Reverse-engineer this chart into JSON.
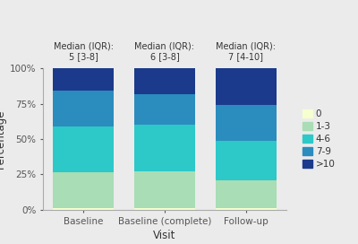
{
  "categories": [
    "Baseline",
    "Baseline (complete)",
    "Follow-up"
  ],
  "annotations": [
    "Median (IQR):\n5 [3-8]",
    "Median (IQR):\n6 [3-8]",
    "Median (IQR):\n7 [4-10]"
  ],
  "segments": {
    "0": [
      1.5,
      1.5,
      1.0
    ],
    "1-3": [
      25.0,
      25.5,
      20.0
    ],
    "4-6": [
      32.5,
      33.0,
      28.0
    ],
    "7-9": [
      25.0,
      22.0,
      25.0
    ],
    ">10": [
      16.0,
      18.0,
      26.0
    ]
  },
  "colors": {
    "0": "#f5ffd0",
    "1-3": "#a8ddb5",
    "4-6": "#2dc8c8",
    "7-9": "#2b8cbe",
    ">10": "#1b3a8c"
  },
  "xlabel": "Visit",
  "ylabel": "Percentage",
  "yticks": [
    0,
    25,
    50,
    75,
    100
  ],
  "yticklabels": [
    "0%",
    "25%",
    "50%",
    "75%",
    "100%"
  ],
  "background_color": "#ebebeb",
  "legend_labels": [
    "0",
    "1-3",
    "4-6",
    "7-9",
    ">10"
  ],
  "annotation_fontsize": 7.0,
  "axis_fontsize": 8.5,
  "tick_fontsize": 7.5,
  "legend_fontsize": 7.5
}
